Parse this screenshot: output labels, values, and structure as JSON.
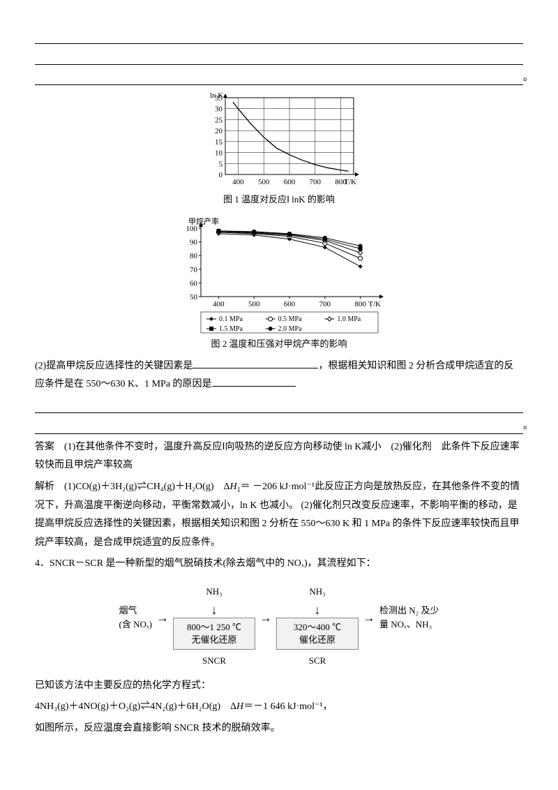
{
  "chart1": {
    "caption": "图 1 温度对反应Ⅰ lnK 的影响",
    "x_label": "T/K",
    "y_label": "ln K",
    "xlim": [
      350,
      850
    ],
    "ylim": [
      0,
      35
    ],
    "xticks": [
      400,
      500,
      600,
      700,
      800
    ],
    "yticks": [
      0,
      5,
      10,
      15,
      20,
      25,
      30,
      35
    ],
    "curve": [
      [
        380,
        33
      ],
      [
        400,
        30
      ],
      [
        450,
        23
      ],
      [
        500,
        17
      ],
      [
        550,
        12
      ],
      [
        600,
        9
      ],
      [
        650,
        6.5
      ],
      [
        700,
        4.5
      ],
      [
        750,
        3
      ],
      [
        800,
        2
      ],
      [
        830,
        1.5
      ]
    ],
    "axis_color": "#000",
    "grid_color": "#000",
    "line_color": "#000",
    "label_fontsize": 11
  },
  "chart2": {
    "caption": "图 2 温度和压强对甲烷产率的影响",
    "x_label": "T/K",
    "y_label": "甲烷产率",
    "xlim": [
      350,
      850
    ],
    "ylim": [
      50,
      100
    ],
    "xticks": [
      400,
      500,
      600,
      700,
      800
    ],
    "yticks": [
      50,
      60,
      70,
      80,
      90,
      100
    ],
    "series": [
      {
        "pts": [
          [
            400,
            96
          ],
          [
            500,
            95
          ],
          [
            600,
            92
          ],
          [
            700,
            86
          ],
          [
            800,
            72
          ]
        ],
        "marker": "diamond"
      },
      {
        "pts": [
          [
            400,
            97
          ],
          [
            500,
            96
          ],
          [
            600,
            94
          ],
          [
            700,
            89
          ],
          [
            800,
            78
          ]
        ],
        "marker": "circle-open"
      },
      {
        "pts": [
          [
            400,
            97.5
          ],
          [
            500,
            96.5
          ],
          [
            600,
            95
          ],
          [
            700,
            91
          ],
          [
            800,
            82
          ]
        ],
        "marker": "diamond-open"
      },
      {
        "pts": [
          [
            400,
            98
          ],
          [
            500,
            97
          ],
          [
            600,
            95.5
          ],
          [
            700,
            92
          ],
          [
            800,
            85
          ]
        ],
        "marker": "square"
      },
      {
        "pts": [
          [
            400,
            98
          ],
          [
            500,
            97.5
          ],
          [
            600,
            96
          ],
          [
            700,
            93
          ],
          [
            800,
            87
          ]
        ],
        "marker": "circle"
      }
    ],
    "legend": [
      {
        "marker": "diamond",
        "label": "0.1 MPa"
      },
      {
        "marker": "circle-open",
        "label": "0.5 MPa"
      },
      {
        "marker": "diamond-open",
        "label": "1.0 MPa"
      },
      {
        "marker": "square",
        "label": "1.5 MPa"
      },
      {
        "marker": "circle",
        "label": "2.0 MPa"
      }
    ],
    "axis_color": "#000",
    "line_color": "#000",
    "label_fontsize": 11
  },
  "q2_a": "(2)提高甲烷反应选择性的关键因素是",
  "q2_b": "，根据相关知识和图 2 分析合成甲烷适宜的反应条件是在 550～630 K、1 MPa 的原因是",
  "ans_label": "答案",
  "ans_1": "(1)在其他条件不变时，温度升高反应Ⅰ向吸热的逆反应方向移动使 ln K减小",
  "ans_2": "(2)催化剂　此条件下反应速率较快而且甲烷产率较高",
  "exp_label": "解析",
  "exp_1a": "(1)CO(g)＋3H₂(g)⇌CH₄(g)＋H₂O(g)　Δ",
  "exp_1b": "＝ －206  kJ·mol⁻¹此反应正方向是放热反应，在其他条件不变的情况下，升高温度平衡逆向移动，平衡常数减小，ln K 也减小。",
  "exp_2": "(2)催化剂只改变反应速率，不影响平衡的移动，是提高甲烷反应选择性的关键因素，根据相关知识和图 2 分析在 550～630 K 和 1 MPa 的条件下反应速率较快而且甲烷产率较高，是合成甲烷适宜的反应条件。",
  "q4_intro": "4．SNCR－SCR 是一种新型的烟气脱硝技术(除去烟气中的 NOₓ)，其流程如下：",
  "flow": {
    "nh3": "NH₃",
    "left1": "烟气",
    "left2": "(含 NOₓ)",
    "box1a": "800～1 250 ℃",
    "box1b": "无催化还原",
    "below1": "SNCR",
    "box2a": "320～400 ℃",
    "box2b": "催化还原",
    "below2": "SCR",
    "right1": "检测出 N₂ 及少",
    "right2": "量 NOₓ、NH₃"
  },
  "q4_known": "已知该方法中主要反应的热化学方程式：",
  "q4_eq_a": "4NH₃(g)＋4NO(g)＋O₂(g)⇌4N₂(g)＋6H₂O(g)　Δ",
  "q4_eq_b": "＝－1 646 kJ·mol⁻¹，",
  "q4_last": "如图所示，反应温度会直接影响 SNCR 技术的脱硝效率。"
}
